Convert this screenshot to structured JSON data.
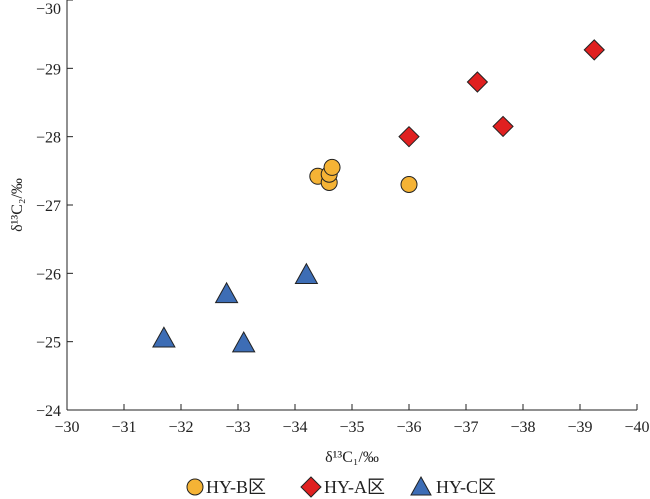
{
  "chart_data": {
    "type": "scatter",
    "xlim": [
      -30,
      -40
    ],
    "ylim": [
      -24,
      -30
    ],
    "x_ticks": [
      -30,
      -31,
      -32,
      -33,
      -34,
      -35,
      -36,
      -37,
      -38,
      -39,
      -40
    ],
    "y_ticks": [
      -24,
      -25,
      -26,
      -27,
      -28,
      -29,
      -30
    ],
    "x_tick_labels": [
      "−30",
      "−31",
      "−32",
      "−33",
      "−34",
      "−35",
      "−36",
      "−37",
      "−38",
      "−39",
      "−40"
    ],
    "y_tick_labels": [
      "−24",
      "−25",
      "−26",
      "−27",
      "−28",
      "−29",
      "−30"
    ],
    "xlabel": "δ¹³C₁/‰",
    "ylabel": "δ¹³C₂/‰",
    "grid": false,
    "legend_position": "bottom",
    "series": [
      {
        "name": "HY-B区",
        "marker": "circle",
        "color": "#F5B335",
        "points": [
          [
            -34.4,
            -27.42
          ],
          [
            -34.6,
            -27.33
          ],
          [
            -34.6,
            -27.45
          ],
          [
            -34.65,
            -27.55
          ],
          [
            -36.0,
            -27.3
          ]
        ]
      },
      {
        "name": "HY-A区",
        "marker": "diamond",
        "color": "#E02020",
        "points": [
          [
            -36.0,
            -28.0
          ],
          [
            -37.2,
            -28.8
          ],
          [
            -37.65,
            -28.15
          ],
          [
            -39.25,
            -29.27
          ]
        ]
      },
      {
        "name": "HY-C区",
        "marker": "triangle",
        "color": "#3D6DB5",
        "points": [
          [
            -31.7,
            -25.05
          ],
          [
            -32.8,
            -25.7
          ],
          [
            -33.1,
            -24.98
          ],
          [
            -34.2,
            -25.98
          ]
        ]
      }
    ]
  }
}
